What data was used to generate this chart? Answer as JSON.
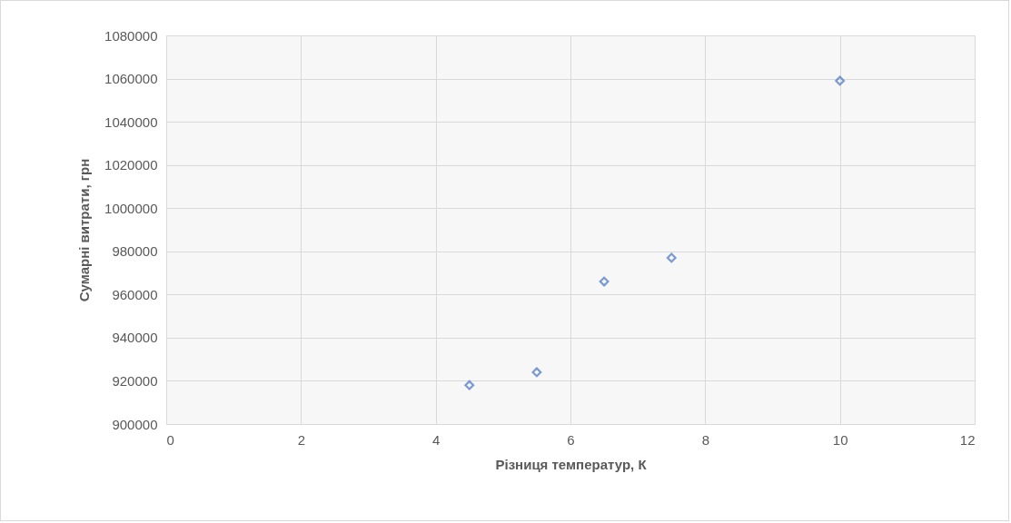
{
  "chart_data": {
    "type": "scatter",
    "xlabel": "Різниця температур, К",
    "ylabel": "Сумарні витрати, грн",
    "x": [
      4.5,
      5.5,
      6.5,
      7.5,
      10
    ],
    "series": [
      {
        "color": "#4472c4",
        "values": [
          918000,
          924000,
          966000,
          977000,
          1059000
        ]
      }
    ],
    "xlim": [
      0,
      12
    ],
    "xticks": [
      0,
      2,
      4,
      6,
      8,
      10,
      12
    ],
    "ylim": [
      900000,
      1080000
    ],
    "yticks": [
      900000,
      920000,
      940000,
      960000,
      980000,
      1000000,
      1020000,
      1040000,
      1060000,
      1080000
    ],
    "grid": true,
    "marker": "diamond"
  }
}
